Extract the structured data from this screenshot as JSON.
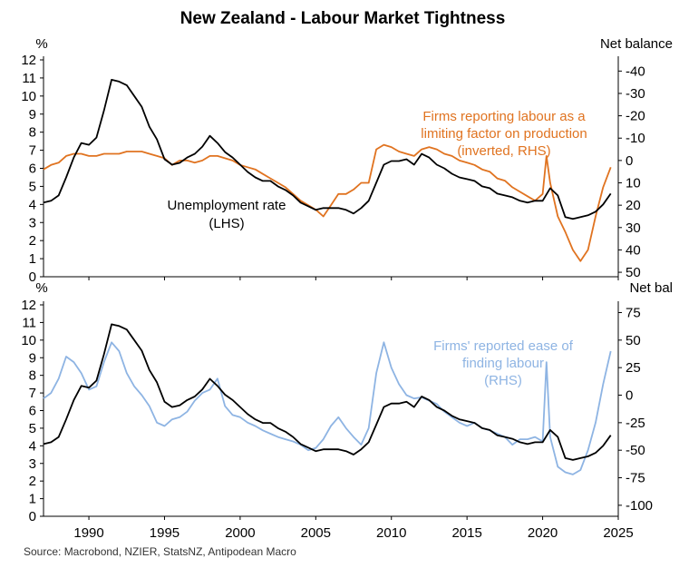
{
  "chart_data": {
    "type": "line",
    "title": "New Zealand - Labour Market Tightness",
    "source": "Source: Macrobond, NZIER, StatsNZ, Antipodean Macro",
    "x_ticks": [
      "1990",
      "1995",
      "2000",
      "2005",
      "2010",
      "2015",
      "2020",
      "2025"
    ],
    "x_tick_values": [
      1990,
      1995,
      2000,
      2005,
      2010,
      2015,
      2020,
      2025
    ],
    "xlim": [
      1987,
      2025
    ],
    "colors": {
      "black": "#000000",
      "orange": "#E07320",
      "blue": "#8EB4E3"
    },
    "panels": [
      {
        "name": "top",
        "left_unit": "%",
        "right_unit": "Net balance",
        "left_ticks": [
          "0",
          "1",
          "2",
          "3",
          "4",
          "5",
          "6",
          "7",
          "8",
          "9",
          "10",
          "11",
          "12"
        ],
        "left_tick_values": [
          0,
          1,
          2,
          3,
          4,
          5,
          6,
          7,
          8,
          9,
          10,
          11,
          12
        ],
        "right_ticks": [
          "-40",
          "-30",
          "-20",
          "-10",
          "0",
          "10",
          "20",
          "30",
          "40",
          "50"
        ],
        "right_tick_values": [
          -40,
          -30,
          -20,
          -10,
          0,
          10,
          20,
          30,
          40,
          50
        ],
        "ylim_left": [
          0,
          12
        ],
        "ylim_right_inverted": [
          -45,
          52
        ],
        "annotations": [
          {
            "id": "unemp",
            "lines": [
              "Unemployment rate",
              "(LHS)"
            ]
          },
          {
            "id": "firms_labour",
            "lines": [
              "Firms reporting labour as a",
              "limiting factor on production",
              "(inverted, RHS)"
            ]
          }
        ],
        "series": [
          {
            "name": "Unemployment rate (LHS)",
            "axis": "left",
            "color": "black",
            "x": [
              1987.0,
              1987.5,
              1988.0,
              1988.5,
              1989.0,
              1989.5,
              1990.0,
              1990.5,
              1991.0,
              1991.5,
              1992.0,
              1992.5,
              1993.0,
              1993.5,
              1994.0,
              1994.5,
              1995.0,
              1995.5,
              1996.0,
              1996.5,
              1997.0,
              1997.5,
              1998.0,
              1998.5,
              1999.0,
              1999.5,
              2000.0,
              2000.5,
              2001.0,
              2001.5,
              2002.0,
              2002.5,
              2003.0,
              2003.5,
              2004.0,
              2004.5,
              2005.0,
              2005.5,
              2006.0,
              2006.5,
              2007.0,
              2007.5,
              2008.0,
              2008.5,
              2009.0,
              2009.5,
              2010.0,
              2010.5,
              2011.0,
              2011.5,
              2012.0,
              2012.5,
              2013.0,
              2013.5,
              2014.0,
              2014.5,
              2015.0,
              2015.5,
              2016.0,
              2016.5,
              2017.0,
              2017.5,
              2018.0,
              2018.5,
              2019.0,
              2019.5,
              2020.0,
              2020.5,
              2021.0,
              2021.5,
              2022.0,
              2022.5,
              2023.0,
              2023.5,
              2024.0,
              2024.5
            ],
            "y": [
              4.1,
              4.2,
              4.5,
              5.5,
              6.6,
              7.4,
              7.3,
              7.7,
              9.2,
              10.9,
              10.8,
              10.6,
              10.0,
              9.4,
              8.3,
              7.6,
              6.5,
              6.2,
              6.3,
              6.6,
              6.8,
              7.2,
              7.8,
              7.4,
              6.9,
              6.6,
              6.2,
              5.8,
              5.5,
              5.3,
              5.3,
              5.0,
              4.8,
              4.5,
              4.1,
              3.9,
              3.7,
              3.8,
              3.8,
              3.8,
              3.7,
              3.5,
              3.8,
              4.2,
              5.2,
              6.2,
              6.4,
              6.4,
              6.5,
              6.2,
              6.8,
              6.6,
              6.2,
              6.0,
              5.7,
              5.5,
              5.4,
              5.3,
              5.0,
              4.9,
              4.6,
              4.5,
              4.4,
              4.2,
              4.1,
              4.2,
              4.2,
              4.9,
              4.5,
              3.3,
              3.2,
              3.3,
              3.4,
              3.6,
              4.0,
              4.6
            ]
          },
          {
            "name": "Firms reporting labour as a limiting factor on production (inverted, RHS)",
            "axis": "right",
            "color": "orange",
            "x": [
              1987.0,
              1987.5,
              1988.0,
              1988.5,
              1989.0,
              1989.5,
              1990.0,
              1990.5,
              1991.0,
              1991.5,
              1992.0,
              1992.5,
              1993.0,
              1993.5,
              1994.0,
              1994.5,
              1995.0,
              1995.5,
              1996.0,
              1996.5,
              1997.0,
              1997.5,
              1998.0,
              1998.5,
              1999.0,
              1999.5,
              2000.0,
              2000.5,
              2001.0,
              2001.5,
              2002.0,
              2002.5,
              2003.0,
              2003.5,
              2004.0,
              2004.5,
              2005.0,
              2005.5,
              2006.0,
              2006.5,
              2007.0,
              2007.5,
              2008.0,
              2008.5,
              2009.0,
              2009.5,
              2010.0,
              2010.5,
              2011.0,
              2011.5,
              2012.0,
              2012.5,
              2013.0,
              2013.5,
              2014.0,
              2014.5,
              2015.0,
              2015.5,
              2016.0,
              2016.5,
              2017.0,
              2017.5,
              2018.0,
              2018.5,
              2019.0,
              2019.5,
              2020.0,
              2020.25,
              2020.5,
              2021.0,
              2021.5,
              2022.0,
              2022.5,
              2023.0,
              2023.5,
              2024.0,
              2024.5
            ],
            "y": [
              4,
              2,
              1,
              -2,
              -3,
              -3,
              -2,
              -2,
              -3,
              -3,
              -3,
              -4,
              -4,
              -4,
              -3,
              -2,
              -1,
              2,
              0,
              0,
              1,
              0,
              -2,
              -2,
              -1,
              0,
              2,
              3,
              4,
              6,
              8,
              10,
              12,
              15,
              18,
              20,
              22,
              25,
              20,
              15,
              15,
              13,
              10,
              10,
              -5,
              -7,
              -6,
              -4,
              -3,
              -2,
              -5,
              -6,
              -5,
              -3,
              -2,
              0,
              1,
              2,
              4,
              5,
              8,
              9,
              12,
              14,
              16,
              18,
              15,
              -2,
              10,
              25,
              32,
              40,
              45,
              40,
              25,
              12,
              3
            ]
          }
        ]
      },
      {
        "name": "bottom",
        "left_unit": "%",
        "right_unit": "Net bal",
        "left_ticks": [
          "0",
          "1",
          "2",
          "3",
          "4",
          "5",
          "6",
          "7",
          "8",
          "9",
          "10",
          "11",
          "12"
        ],
        "left_tick_values": [
          0,
          1,
          2,
          3,
          4,
          5,
          6,
          7,
          8,
          9,
          10,
          11,
          12
        ],
        "right_ticks": [
          "75",
          "50",
          "25",
          "0",
          "-25",
          "-50",
          "-75",
          "-100"
        ],
        "right_tick_values": [
          75,
          50,
          25,
          0,
          -25,
          -50,
          -75,
          -100
        ],
        "ylim_left": [
          0,
          12
        ],
        "ylim_right": [
          -110,
          82
        ],
        "annotations": [
          {
            "id": "firms_ease",
            "lines": [
              "Firms' reported ease of",
              "finding labour",
              "(RHS)"
            ]
          }
        ],
        "series": [
          {
            "name": "Unemployment rate (LHS)",
            "axis": "left",
            "color": "black",
            "x": [
              1987.0,
              1987.5,
              1988.0,
              1988.5,
              1989.0,
              1989.5,
              1990.0,
              1990.5,
              1991.0,
              1991.5,
              1992.0,
              1992.5,
              1993.0,
              1993.5,
              1994.0,
              1994.5,
              1995.0,
              1995.5,
              1996.0,
              1996.5,
              1997.0,
              1997.5,
              1998.0,
              1998.5,
              1999.0,
              1999.5,
              2000.0,
              2000.5,
              2001.0,
              2001.5,
              2002.0,
              2002.5,
              2003.0,
              2003.5,
              2004.0,
              2004.5,
              2005.0,
              2005.5,
              2006.0,
              2006.5,
              2007.0,
              2007.5,
              2008.0,
              2008.5,
              2009.0,
              2009.5,
              2010.0,
              2010.5,
              2011.0,
              2011.5,
              2012.0,
              2012.5,
              2013.0,
              2013.5,
              2014.0,
              2014.5,
              2015.0,
              2015.5,
              2016.0,
              2016.5,
              2017.0,
              2017.5,
              2018.0,
              2018.5,
              2019.0,
              2019.5,
              2020.0,
              2020.5,
              2021.0,
              2021.5,
              2022.0,
              2022.5,
              2023.0,
              2023.5,
              2024.0,
              2024.5
            ],
            "y": [
              4.1,
              4.2,
              4.5,
              5.5,
              6.6,
              7.4,
              7.3,
              7.7,
              9.2,
              10.9,
              10.8,
              10.6,
              10.0,
              9.4,
              8.3,
              7.6,
              6.5,
              6.2,
              6.3,
              6.6,
              6.8,
              7.2,
              7.8,
              7.4,
              6.9,
              6.6,
              6.2,
              5.8,
              5.5,
              5.3,
              5.3,
              5.0,
              4.8,
              4.5,
              4.1,
              3.9,
              3.7,
              3.8,
              3.8,
              3.8,
              3.7,
              3.5,
              3.8,
              4.2,
              5.2,
              6.2,
              6.4,
              6.4,
              6.5,
              6.2,
              6.8,
              6.6,
              6.2,
              6.0,
              5.7,
              5.5,
              5.4,
              5.3,
              5.0,
              4.9,
              4.6,
              4.5,
              4.4,
              4.2,
              4.1,
              4.2,
              4.2,
              4.9,
              4.5,
              3.3,
              3.2,
              3.3,
              3.4,
              3.6,
              4.0,
              4.6
            ]
          },
          {
            "name": "Firms' reported ease of finding labour (RHS)",
            "axis": "right",
            "color": "blue",
            "x": [
              1987.0,
              1987.5,
              1988.0,
              1988.5,
              1989.0,
              1989.5,
              1990.0,
              1990.5,
              1991.0,
              1991.5,
              1992.0,
              1992.5,
              1993.0,
              1993.5,
              1994.0,
              1994.5,
              1995.0,
              1995.5,
              1996.0,
              1996.5,
              1997.0,
              1997.5,
              1998.0,
              1998.5,
              1999.0,
              1999.5,
              2000.0,
              2000.5,
              2001.0,
              2001.5,
              2002.0,
              2002.5,
              2003.0,
              2003.5,
              2004.0,
              2004.5,
              2005.0,
              2005.5,
              2006.0,
              2006.5,
              2007.0,
              2007.5,
              2008.0,
              2008.5,
              2009.0,
              2009.5,
              2010.0,
              2010.5,
              2011.0,
              2011.5,
              2012.0,
              2012.5,
              2013.0,
              2013.5,
              2014.0,
              2014.5,
              2015.0,
              2015.5,
              2016.0,
              2016.5,
              2017.0,
              2017.5,
              2018.0,
              2018.5,
              2019.0,
              2019.5,
              2020.0,
              2020.25,
              2020.5,
              2021.0,
              2021.5,
              2022.0,
              2022.5,
              2023.0,
              2023.5,
              2024.0,
              2024.5
            ],
            "y": [
              -3,
              2,
              15,
              35,
              30,
              20,
              5,
              8,
              30,
              48,
              40,
              20,
              8,
              0,
              -10,
              -25,
              -28,
              -22,
              -20,
              -15,
              -5,
              2,
              5,
              15,
              -10,
              -18,
              -20,
              -25,
              -28,
              -32,
              -35,
              -38,
              -40,
              -42,
              -45,
              -50,
              -48,
              -40,
              -28,
              -20,
              -30,
              -38,
              -45,
              -30,
              20,
              48,
              25,
              10,
              0,
              -3,
              -2,
              -5,
              -8,
              -15,
              -20,
              -25,
              -28,
              -25,
              -30,
              -32,
              -35,
              -38,
              -45,
              -40,
              -40,
              -38,
              -42,
              30,
              -38,
              -65,
              -70,
              -72,
              -68,
              -50,
              -25,
              10,
              40
            ]
          }
        ]
      }
    ]
  }
}
